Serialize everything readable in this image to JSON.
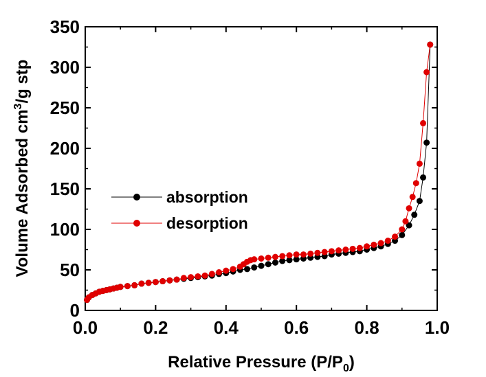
{
  "chart_data": {
    "type": "scatter",
    "xlabel_main": "Relative Pressure (P/P",
    "xlabel_sub": "0",
    "xlabel_end": ")",
    "ylabel_main": "Volume Adsorbed cm",
    "ylabel_sup": "3",
    "ylabel_end": "/g stp",
    "xlim": [
      0.0,
      1.0
    ],
    "ylim": [
      0,
      350
    ],
    "xticks": [
      "0.0",
      "0.2",
      "0.4",
      "0.6",
      "0.8",
      "1.0"
    ],
    "yticks": [
      "0",
      "50",
      "100",
      "150",
      "200",
      "250",
      "300",
      "350"
    ],
    "legend_position": "middle-left",
    "grid": false,
    "series": [
      {
        "name": "absorption",
        "color": "#000000",
        "x": [
          0.005,
          0.01,
          0.02,
          0.03,
          0.04,
          0.05,
          0.06,
          0.07,
          0.08,
          0.09,
          0.1,
          0.12,
          0.14,
          0.16,
          0.18,
          0.2,
          0.22,
          0.24,
          0.26,
          0.28,
          0.3,
          0.32,
          0.34,
          0.36,
          0.38,
          0.4,
          0.42,
          0.44,
          0.46,
          0.48,
          0.5,
          0.52,
          0.54,
          0.56,
          0.58,
          0.6,
          0.62,
          0.64,
          0.66,
          0.68,
          0.7,
          0.72,
          0.74,
          0.76,
          0.78,
          0.8,
          0.82,
          0.84,
          0.86,
          0.88,
          0.9,
          0.92,
          0.935,
          0.95,
          0.96,
          0.97,
          0.98
        ],
        "y": [
          13,
          16,
          19,
          21,
          23,
          24,
          25,
          26,
          27,
          28,
          29,
          30,
          31,
          33,
          34,
          35,
          36,
          37,
          38,
          39,
          40,
          41,
          42,
          43,
          45,
          46,
          48,
          50,
          51,
          53,
          55,
          57,
          59,
          61,
          62,
          63,
          64,
          65,
          66,
          67,
          69,
          70,
          71,
          72,
          73,
          75,
          77,
          79,
          82,
          86,
          93,
          105,
          118,
          135,
          164,
          207,
          328
        ]
      },
      {
        "name": "desorption",
        "color": "#e00000",
        "x": [
          0.005,
          0.01,
          0.02,
          0.03,
          0.04,
          0.05,
          0.06,
          0.07,
          0.08,
          0.09,
          0.1,
          0.12,
          0.14,
          0.16,
          0.18,
          0.2,
          0.22,
          0.24,
          0.26,
          0.28,
          0.3,
          0.32,
          0.34,
          0.36,
          0.38,
          0.4,
          0.42,
          0.44,
          0.45,
          0.46,
          0.47,
          0.48,
          0.5,
          0.52,
          0.54,
          0.56,
          0.58,
          0.6,
          0.62,
          0.64,
          0.66,
          0.68,
          0.7,
          0.72,
          0.74,
          0.76,
          0.78,
          0.8,
          0.82,
          0.84,
          0.86,
          0.88,
          0.9,
          0.91,
          0.92,
          0.93,
          0.94,
          0.95,
          0.96,
          0.97,
          0.98
        ],
        "y": [
          13,
          16,
          19,
          21,
          23,
          24,
          25,
          26,
          27,
          28,
          29,
          30,
          31,
          33,
          34,
          35,
          36,
          37,
          38,
          40,
          41,
          42,
          43,
          45,
          47,
          49,
          51,
          54,
          57,
          60,
          62,
          63,
          64,
          65,
          66,
          67,
          68,
          69,
          69,
          70,
          71,
          72,
          73,
          74,
          75,
          76,
          77,
          79,
          81,
          83,
          86,
          91,
          100,
          110,
          126,
          140,
          157,
          181,
          231,
          294,
          328
        ]
      }
    ]
  }
}
